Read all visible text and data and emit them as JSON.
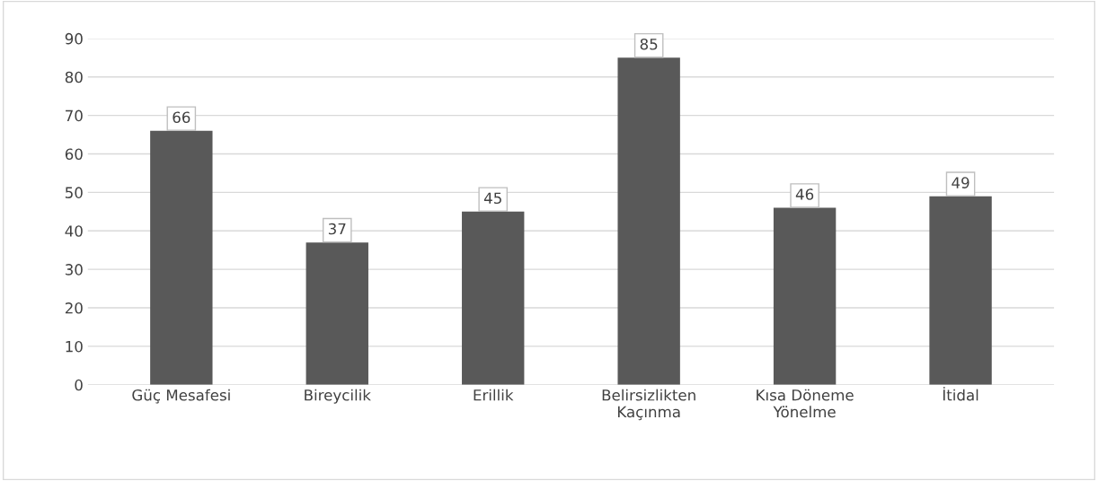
{
  "chart_data": {
    "type": "bar",
    "categories": [
      "Güç Mesafesi",
      "Bireycilik",
      "Erillik",
      "Belirsizlikten Kaçınma",
      "Kısa Döneme Yönelme",
      "İtidal"
    ],
    "values": [
      66,
      37,
      45,
      85,
      46,
      49
    ],
    "color": "#595959",
    "ylim": [
      0,
      90
    ],
    "yticks": [
      0,
      10,
      20,
      30,
      40,
      50,
      60,
      70,
      80,
      90
    ],
    "grid": "y",
    "data_labels": true,
    "legend": false
  }
}
